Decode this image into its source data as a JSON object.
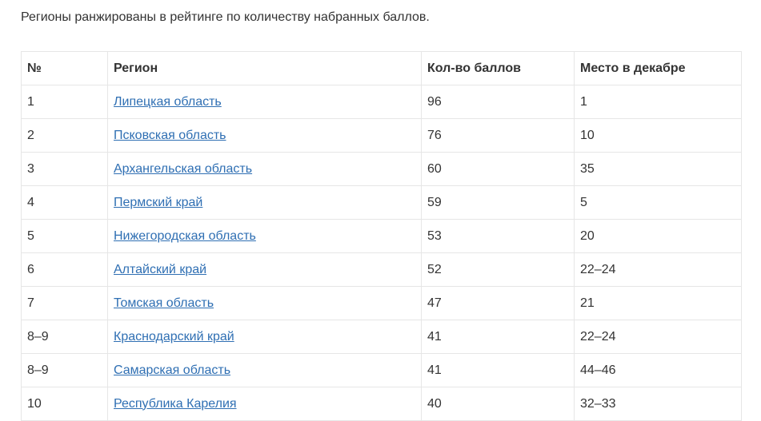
{
  "intro_text": "Регионы ранжированы в рейтинге по количеству набранных баллов.",
  "table": {
    "headers": {
      "num": "№",
      "region": "Регион",
      "score": "Кол-во баллов",
      "december_place": "Место в декабре"
    },
    "rows": [
      {
        "num": "1",
        "region": "Липецкая область",
        "score": "96",
        "december_place": "1"
      },
      {
        "num": "2",
        "region": "Псковская область",
        "score": "76",
        "december_place": "10"
      },
      {
        "num": "3",
        "region": "Архангельская область",
        "score": "60",
        "december_place": "35"
      },
      {
        "num": "4",
        "region": "Пермский край",
        "score": "59",
        "december_place": "5"
      },
      {
        "num": "5",
        "region": "Нижегородская область",
        "score": "53",
        "december_place": "20"
      },
      {
        "num": "6",
        "region": "Алтайский край",
        "score": "52",
        "december_place": "22–24"
      },
      {
        "num": "7",
        "region": "Томская область",
        "score": "47",
        "december_place": "21"
      },
      {
        "num": "8–9",
        "region": "Краснодарский край",
        "score": "41",
        "december_place": "22–24"
      },
      {
        "num": "8–9",
        "region": "Самарская область",
        "score": "41",
        "december_place": "44–46"
      },
      {
        "num": "10",
        "region": "Республика Карелия",
        "score": "40",
        "december_place": "32–33"
      }
    ]
  },
  "colors": {
    "text": "#333333",
    "link": "#2f6fb3",
    "border": "#e6e6e6",
    "background": "#ffffff"
  }
}
